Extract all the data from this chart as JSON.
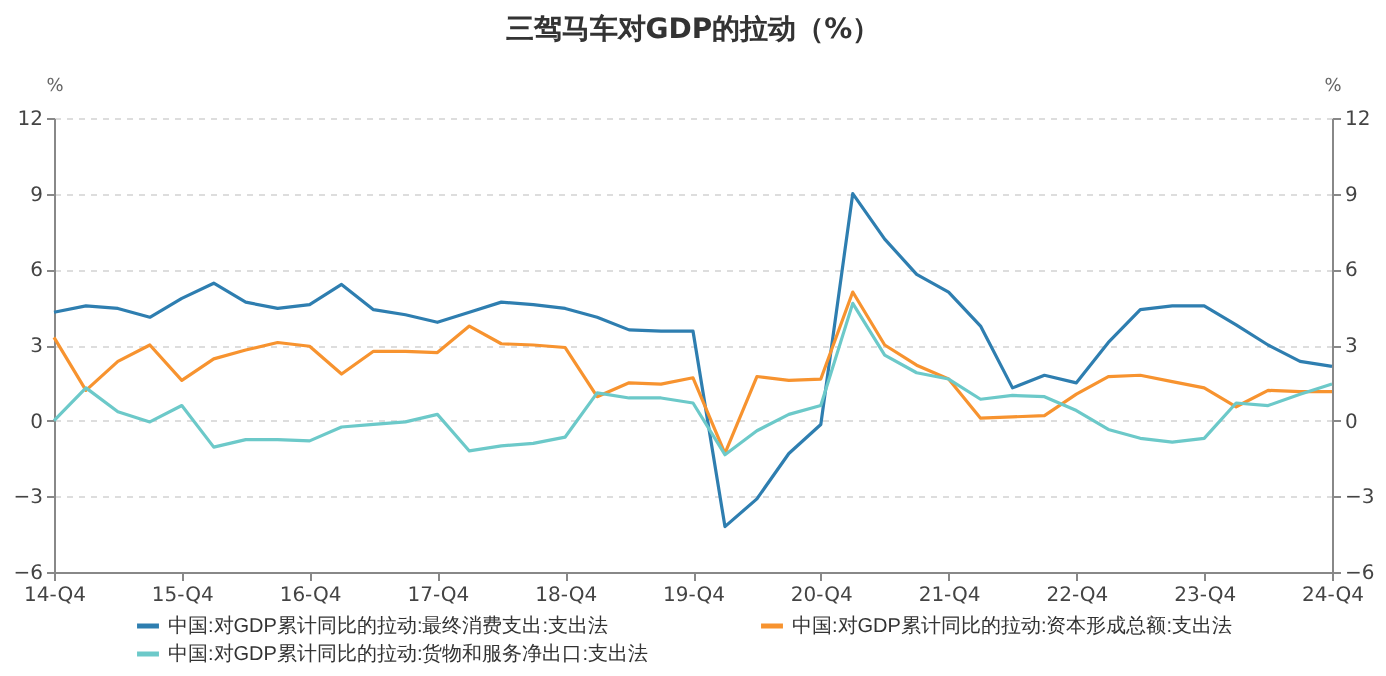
{
  "chart_data": {
    "type": "line",
    "title": "三驾马车对GDP的拉动（%）",
    "ylabel": "%",
    "y2label": "%",
    "categories": [
      "14-Q4",
      null,
      null,
      null,
      "15-Q4",
      null,
      null,
      null,
      "16-Q4",
      null,
      null,
      null,
      "17-Q4",
      null,
      null,
      null,
      "18-Q4",
      null,
      null,
      null,
      "19-Q4",
      null,
      null,
      null,
      "20-Q4",
      null,
      null,
      null,
      "21-Q4",
      null,
      null,
      null,
      "22-Q4",
      null,
      null,
      null,
      "23-Q4",
      null,
      null,
      null,
      "24-Q4"
    ],
    "series": [
      {
        "name": "中国:对GDP累计同比的拉动:最终消费支出:支出法",
        "color": "#2e7eb0",
        "values": [
          4.3,
          4.55,
          4.45,
          4.1,
          4.85,
          5.45,
          4.7,
          4.45,
          4.6,
          5.4,
          4.4,
          4.2,
          3.9,
          4.3,
          4.7,
          4.6,
          4.45,
          4.1,
          3.6,
          3.55,
          3.55,
          -4.2,
          -3.1,
          -1.3,
          -0.15,
          9.0,
          7.2,
          5.8,
          5.1,
          3.75,
          1.3,
          1.8,
          1.5,
          3.1,
          4.4,
          4.55,
          4.55,
          3.8,
          3.0,
          2.35,
          2.15
        ]
      },
      {
        "name": "中国:对GDP累计同比的拉动:资本形成总额:支出法",
        "color": "#f7932f",
        "values": [
          3.3,
          1.2,
          2.35,
          3.0,
          1.6,
          2.45,
          2.8,
          3.1,
          2.95,
          1.85,
          2.75,
          2.75,
          2.7,
          3.75,
          3.05,
          3.0,
          2.9,
          0.95,
          1.5,
          1.45,
          1.7,
          -1.3,
          1.75,
          1.6,
          1.65,
          5.1,
          3.0,
          2.2,
          1.65,
          0.1,
          0.15,
          0.2,
          1.05,
          1.75,
          1.8,
          1.55,
          1.3,
          0.55,
          1.2,
          1.15,
          1.15
        ]
      },
      {
        "name": "中国:对GDP累计同比的拉动:货物和服务净出口:支出法",
        "color": "#6cc9c9",
        "values": [
          0.0,
          1.3,
          0.35,
          -0.05,
          0.6,
          -1.05,
          -0.75,
          -0.75,
          -0.8,
          -0.25,
          -0.15,
          -0.05,
          0.25,
          -1.2,
          -1.0,
          -0.9,
          -0.65,
          1.1,
          0.9,
          0.9,
          0.7,
          -1.35,
          -0.4,
          0.25,
          0.6,
          4.65,
          2.6,
          1.9,
          1.65,
          0.85,
          1.0,
          0.95,
          0.4,
          -0.35,
          -0.7,
          -0.85,
          -0.7,
          0.7,
          0.6,
          1.05,
          1.45
        ]
      }
    ],
    "ylim": [
      -6,
      12
    ],
    "yticks": [
      -6,
      -3,
      0,
      3,
      6,
      9,
      12
    ],
    "y2lim": [
      -6,
      12
    ],
    "y2ticks": [
      -6,
      -3,
      0,
      3,
      6,
      9,
      12
    ],
    "grid": "y",
    "legend": "bottom",
    "marker": "none",
    "line_style": "solid"
  }
}
